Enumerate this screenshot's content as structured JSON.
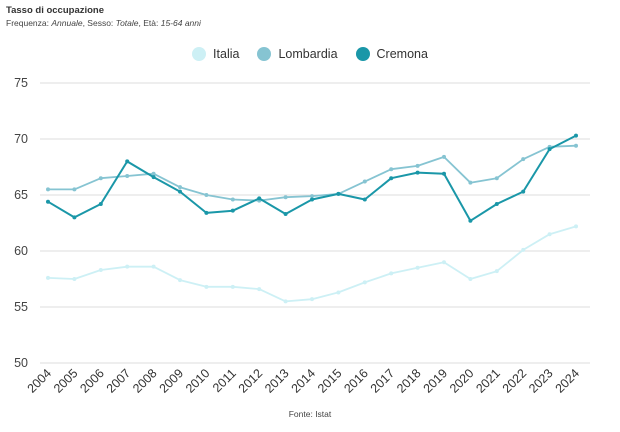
{
  "header": {
    "title": "Tasso di occupazione",
    "subtitle_parts": [
      {
        "k": "Frequenza: ",
        "v": "Annuale"
      },
      {
        "k": ", Sesso: ",
        "v": "Totale"
      },
      {
        "k": ", Età: ",
        "v": "15-64 anni"
      }
    ]
  },
  "source": "Fonte: Istat",
  "chart_data": {
    "type": "line",
    "title": "Tasso di occupazione",
    "categories": [
      "2004",
      "2005",
      "2006",
      "2007",
      "2008",
      "2009",
      "2010",
      "2011",
      "2012",
      "2013",
      "2014",
      "2015",
      "2016",
      "2017",
      "2018",
      "2019",
      "2020",
      "2021",
      "2022",
      "2023",
      "2024"
    ],
    "ylim": [
      50,
      75
    ],
    "yticks": [
      50,
      55,
      60,
      65,
      70,
      75
    ],
    "grid": true,
    "legend": "top-center",
    "series": [
      {
        "name": "Italia",
        "color": "#cdf0f5",
        "line_width": 1.8,
        "values": [
          57.6,
          57.5,
          58.3,
          58.6,
          58.6,
          57.4,
          56.8,
          56.8,
          56.6,
          55.5,
          55.7,
          56.3,
          57.2,
          58.0,
          58.5,
          59.0,
          57.5,
          58.2,
          60.1,
          61.5,
          62.2
        ]
      },
      {
        "name": "Lombardia",
        "color": "#86c4d2",
        "line_width": 1.8,
        "values": [
          65.5,
          65.5,
          66.5,
          66.7,
          66.9,
          65.7,
          65.0,
          64.6,
          64.5,
          64.8,
          64.9,
          65.1,
          66.2,
          67.3,
          67.6,
          68.4,
          66.1,
          66.5,
          68.2,
          69.3,
          69.4
        ]
      },
      {
        "name": "Cremona",
        "color": "#1a97a8",
        "line_width": 2.0,
        "values": [
          64.4,
          63.0,
          64.2,
          68.0,
          66.6,
          65.3,
          63.4,
          63.6,
          64.7,
          63.3,
          64.6,
          65.1,
          64.6,
          66.5,
          67.0,
          66.9,
          62.7,
          64.2,
          65.3,
          69.1,
          70.3
        ]
      }
    ]
  }
}
